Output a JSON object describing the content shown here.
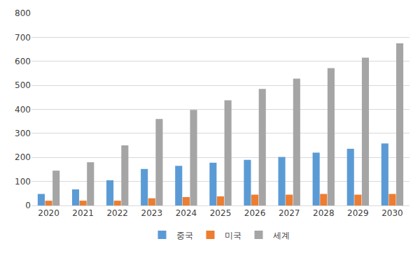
{
  "chart_data": {
    "type": "bar",
    "categories": [
      "2020",
      "2021",
      "2022",
      "2023",
      "2024",
      "2025",
      "2026",
      "2027",
      "2028",
      "2029",
      "2030"
    ],
    "series": [
      {
        "name": "중국",
        "color": "#5b9bd5",
        "values": [
          48,
          67,
          105,
          152,
          165,
          178,
          190,
          202,
          220,
          236,
          258
        ]
      },
      {
        "name": "미국",
        "color": "#ed7d31",
        "values": [
          20,
          20,
          20,
          30,
          35,
          38,
          45,
          45,
          48,
          45,
          48
        ]
      },
      {
        "name": "세계",
        "color": "#a5a5a5",
        "values": [
          145,
          180,
          250,
          360,
          398,
          438,
          485,
          528,
          572,
          615,
          675
        ]
      }
    ],
    "ylim": [
      0,
      800
    ],
    "yticks": [
      0,
      100,
      200,
      300,
      400,
      500,
      600,
      700,
      800
    ],
    "grid": true,
    "legend": "bottom"
  }
}
